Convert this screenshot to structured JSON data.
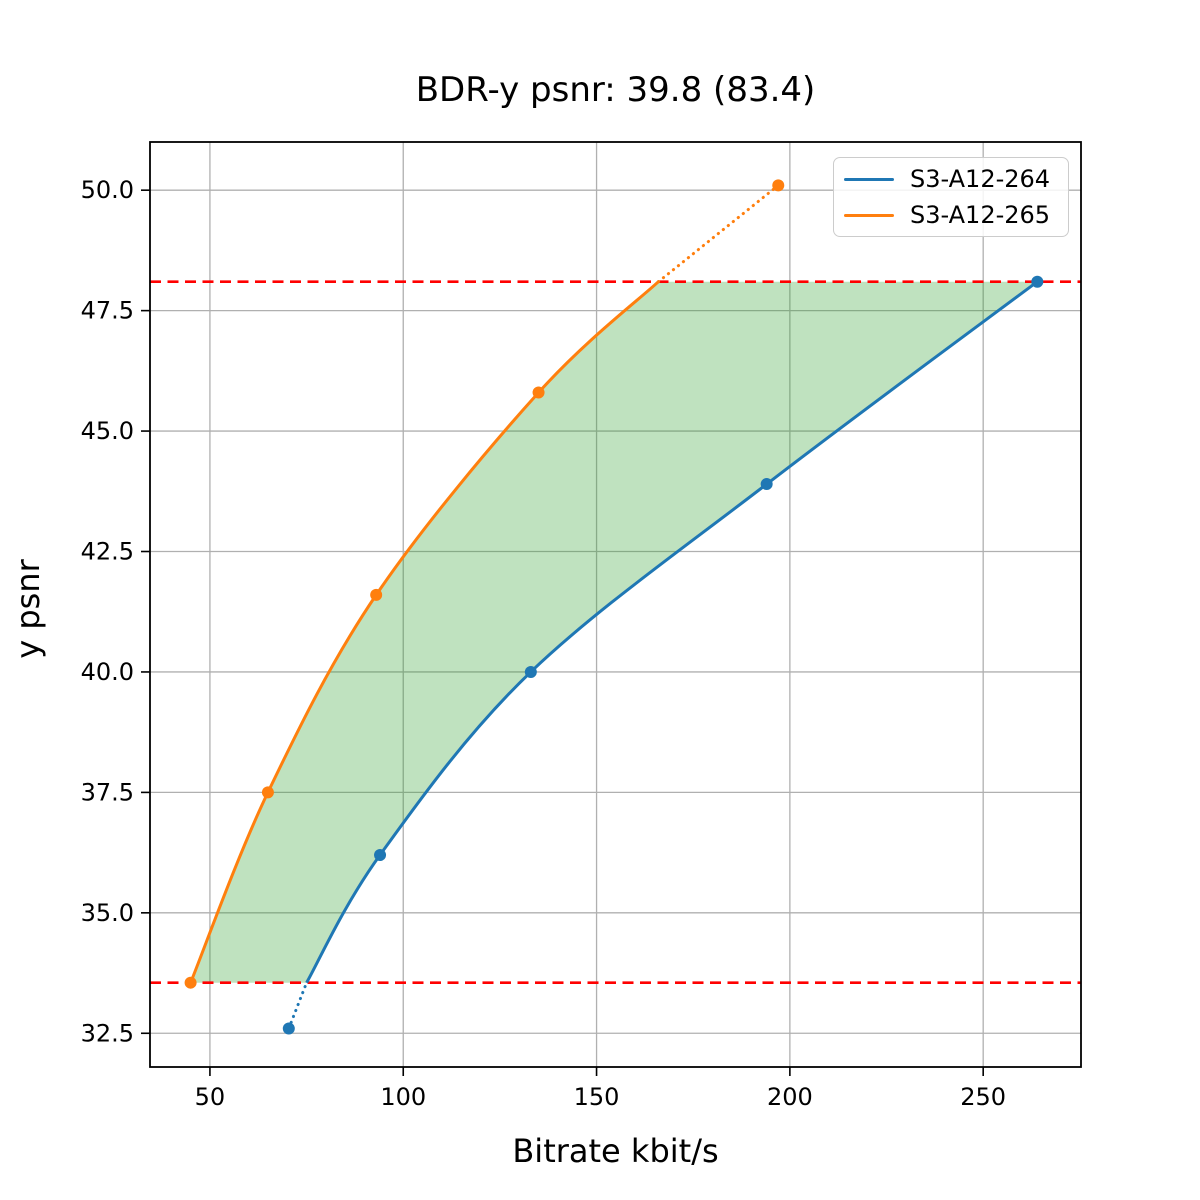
{
  "chart_data": {
    "type": "line",
    "title": "BDR-y psnr: 39.8 (83.4)",
    "xlabel": "Bitrate kbit/s",
    "ylabel": "y psnr",
    "xlim": [
      34.5,
      275.3
    ],
    "ylim": [
      31.8,
      51.0
    ],
    "xticks": [
      50,
      100,
      150,
      200,
      250
    ],
    "yticks": [
      32.5,
      35.0,
      37.5,
      40.0,
      42.5,
      45.0,
      47.5,
      50.0
    ],
    "grid": true,
    "grid_color": "#b0b0b0",
    "legend_position": "upper right",
    "series": [
      {
        "name": "S3-A12-264",
        "color": "#1f77b4",
        "points": [
          [
            70.4,
            32.6
          ],
          [
            94,
            36.2
          ],
          [
            133,
            40.0
          ],
          [
            194,
            43.9
          ],
          [
            264,
            48.1
          ]
        ],
        "solid_segment": [
          [
            75,
            33.55
          ],
          [
            94,
            36.2
          ],
          [
            133,
            40.0
          ],
          [
            194,
            43.9
          ],
          [
            264,
            48.1
          ]
        ],
        "dotted_segment": [
          [
            70.4,
            32.6
          ],
          [
            75,
            33.55
          ]
        ]
      },
      {
        "name": "S3-A12-265",
        "color": "#ff7f0e",
        "points": [
          [
            45,
            33.55
          ],
          [
            65,
            37.5
          ],
          [
            93,
            41.6
          ],
          [
            135,
            45.8
          ],
          [
            197,
            50.1
          ]
        ],
        "solid_segment": [
          [
            45,
            33.55
          ],
          [
            65,
            37.5
          ],
          [
            93,
            41.6
          ],
          [
            135,
            45.8
          ],
          [
            166,
            48.1
          ]
        ],
        "dotted_segment": [
          [
            166,
            48.1
          ],
          [
            197,
            50.1
          ]
        ]
      }
    ],
    "hlines": [
      {
        "y": 48.1,
        "color": "#ff0000",
        "style": "dashed"
      },
      {
        "y": 33.55,
        "color": "#ff0000",
        "style": "dashed"
      }
    ],
    "fill_between": {
      "color": "#2ca02c",
      "opacity": 0.3,
      "upper_series": "S3-A12-265",
      "lower_series": "S3-A12-264",
      "top_bound_y": 48.1,
      "bottom_bound_y": 33.55
    }
  }
}
